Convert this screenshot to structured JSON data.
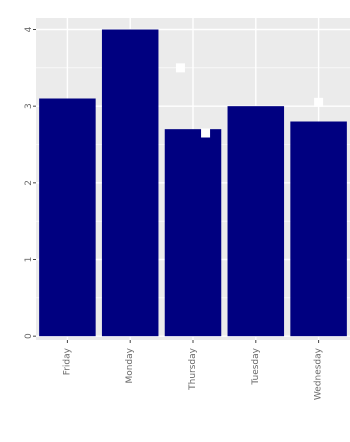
{
  "chart_data": {
    "type": "bar",
    "title": "",
    "xlabel": "",
    "ylabel": "",
    "categories": [
      "Friday",
      "Monday",
      "Thursday",
      "Tuesday",
      "Wednesday"
    ],
    "values": [
      3.1,
      4.0,
      2.7,
      3.0,
      2.8
    ],
    "yticks": [
      0,
      1,
      2,
      3,
      4
    ],
    "ylim": [
      -0.05,
      4.15
    ],
    "bar_color": "#000080",
    "panel_background": "#ebebeb",
    "grid_color": "#ffffff",
    "grid": true,
    "legend": "none",
    "markers": [
      {
        "category": "Thursday",
        "offset": -0.2,
        "y": 3.5
      },
      {
        "category": "Thursday",
        "offset": 0.2,
        "y": 2.65
      },
      {
        "category": "Wednesday",
        "offset": 0.0,
        "y": 3.05
      }
    ]
  }
}
